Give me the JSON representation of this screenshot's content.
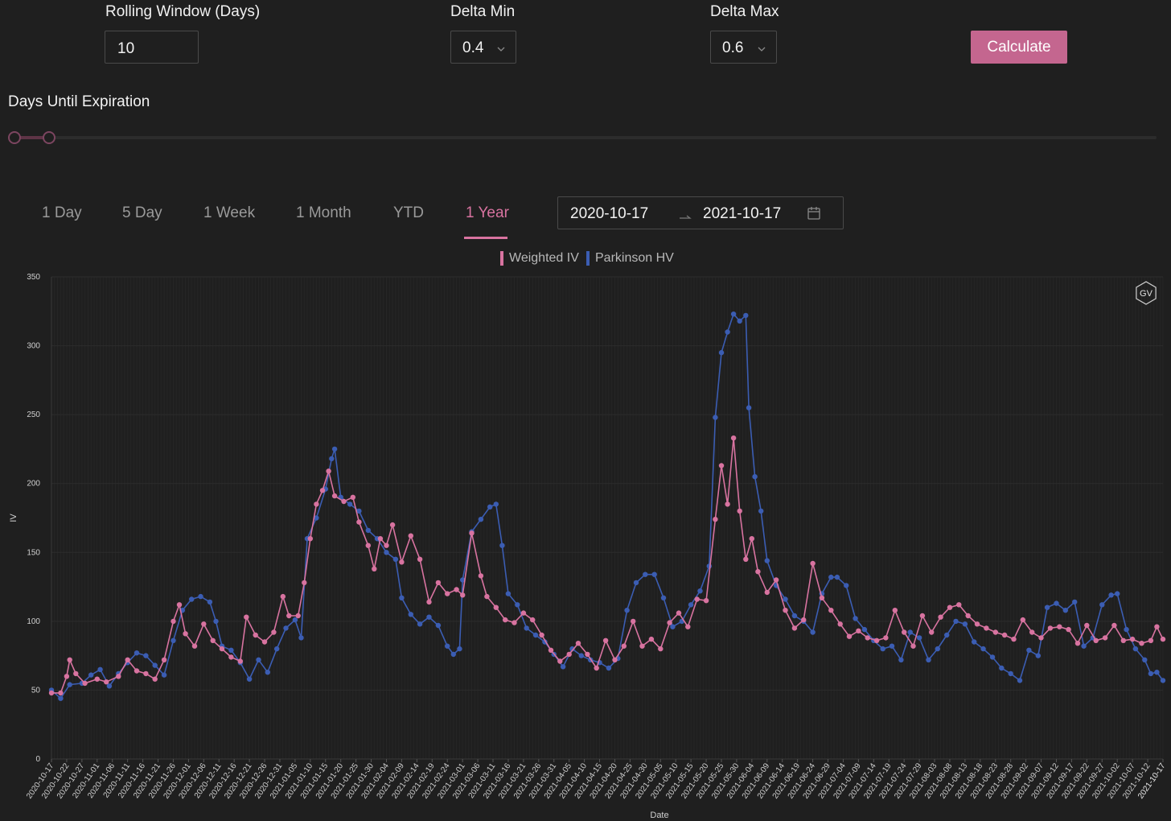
{
  "controls": {
    "rolling_label": "Rolling Window (Days)",
    "rolling_value": "10",
    "delta_min_label": "Delta Min",
    "delta_min_value": "0.4",
    "delta_max_label": "Delta Max",
    "delta_max_value": "0.6",
    "calculate_label": "Calculate",
    "days_label": "Days Until Expiration",
    "slider_range": [
      0,
      0.03
    ]
  },
  "tabs": [
    "1 Day",
    "5 Day",
    "1 Week",
    "1 Month",
    "YTD",
    "1 Year"
  ],
  "active_tab": "1 Year",
  "date_range": {
    "start": "2020-10-17",
    "end": "2021-10-17"
  },
  "colors": {
    "accent": "#c4668f",
    "weighted_iv": "#d873a0",
    "parkinson_hv": "#3b5db3",
    "background": "#1f1f1f"
  },
  "chart_badge": "GV",
  "chart_data": {
    "type": "line",
    "title": "",
    "xlabel": "Date",
    "ylabel": "IV",
    "ylim": [
      0,
      350
    ],
    "yticks": [
      0,
      50,
      100,
      150,
      200,
      250,
      300,
      350
    ],
    "xlim": [
      "2020-10-17",
      "2021-10-17"
    ],
    "xtick_step_days": 5,
    "grid": true,
    "legend_position": "top-center",
    "series": [
      {
        "name": "Weighted IV",
        "color": "#d873a0",
        "points": [
          [
            "2020-10-17",
            48
          ],
          [
            "2020-10-20",
            48
          ],
          [
            "2020-10-22",
            60
          ],
          [
            "2020-10-23",
            72
          ],
          [
            "2020-10-25",
            62
          ],
          [
            "2020-10-28",
            55
          ],
          [
            "2020-11-01",
            58
          ],
          [
            "2020-11-04",
            56
          ],
          [
            "2020-11-08",
            60
          ],
          [
            "2020-11-11",
            72
          ],
          [
            "2020-11-14",
            64
          ],
          [
            "2020-11-17",
            62
          ],
          [
            "2020-11-20",
            58
          ],
          [
            "2020-11-23",
            72
          ],
          [
            "2020-11-26",
            100
          ],
          [
            "2020-11-28",
            112
          ],
          [
            "2020-11-30",
            91
          ],
          [
            "2020-12-03",
            82
          ],
          [
            "2020-12-06",
            98
          ],
          [
            "2020-12-09",
            86
          ],
          [
            "2020-12-12",
            80
          ],
          [
            "2020-12-15",
            74
          ],
          [
            "2020-12-18",
            71
          ],
          [
            "2020-12-20",
            103
          ],
          [
            "2020-12-23",
            90
          ],
          [
            "2020-12-26",
            85
          ],
          [
            "2020-12-29",
            92
          ],
          [
            "2021-01-01",
            118
          ],
          [
            "2021-01-03",
            104
          ],
          [
            "2021-01-06",
            104
          ],
          [
            "2021-01-08",
            128
          ],
          [
            "2021-01-10",
            160
          ],
          [
            "2021-01-12",
            185
          ],
          [
            "2021-01-14",
            195
          ],
          [
            "2021-01-16",
            209
          ],
          [
            "2021-01-18",
            191
          ],
          [
            "2021-01-21",
            187
          ],
          [
            "2021-01-24",
            190
          ],
          [
            "2021-01-26",
            172
          ],
          [
            "2021-01-29",
            155
          ],
          [
            "2021-01-31",
            138
          ],
          [
            "2021-02-02",
            160
          ],
          [
            "2021-02-04",
            155
          ],
          [
            "2021-02-06",
            170
          ],
          [
            "2021-02-09",
            143
          ],
          [
            "2021-02-12",
            162
          ],
          [
            "2021-02-15",
            145
          ],
          [
            "2021-02-18",
            114
          ],
          [
            "2021-02-21",
            128
          ],
          [
            "2021-02-24",
            120
          ],
          [
            "2021-02-27",
            123
          ],
          [
            "2021-03-01",
            119
          ],
          [
            "2021-03-04",
            164
          ],
          [
            "2021-03-07",
            133
          ],
          [
            "2021-03-09",
            118
          ],
          [
            "2021-03-12",
            110
          ],
          [
            "2021-03-15",
            101
          ],
          [
            "2021-03-18",
            99
          ],
          [
            "2021-03-21",
            106
          ],
          [
            "2021-03-24",
            101
          ],
          [
            "2021-03-27",
            90
          ],
          [
            "2021-03-30",
            79
          ],
          [
            "2021-04-02",
            71
          ],
          [
            "2021-04-05",
            76
          ],
          [
            "2021-04-08",
            84
          ],
          [
            "2021-04-11",
            76
          ],
          [
            "2021-04-14",
            66
          ],
          [
            "2021-04-17",
            86
          ],
          [
            "2021-04-20",
            72
          ],
          [
            "2021-04-23",
            82
          ],
          [
            "2021-04-26",
            100
          ],
          [
            "2021-04-29",
            82
          ],
          [
            "2021-05-02",
            87
          ],
          [
            "2021-05-05",
            80
          ],
          [
            "2021-05-08",
            99
          ],
          [
            "2021-05-11",
            106
          ],
          [
            "2021-05-14",
            96
          ],
          [
            "2021-05-17",
            116
          ],
          [
            "2021-05-20",
            115
          ],
          [
            "2021-05-23",
            174
          ],
          [
            "2021-05-25",
            213
          ],
          [
            "2021-05-27",
            185
          ],
          [
            "2021-05-29",
            233
          ],
          [
            "2021-05-31",
            180
          ],
          [
            "2021-06-02",
            145
          ],
          [
            "2021-06-04",
            160
          ],
          [
            "2021-06-06",
            136
          ],
          [
            "2021-06-09",
            121
          ],
          [
            "2021-06-12",
            130
          ],
          [
            "2021-06-15",
            108
          ],
          [
            "2021-06-18",
            95
          ],
          [
            "2021-06-21",
            101
          ],
          [
            "2021-06-24",
            142
          ],
          [
            "2021-06-27",
            117
          ],
          [
            "2021-06-30",
            108
          ],
          [
            "2021-07-03",
            98
          ],
          [
            "2021-07-06",
            89
          ],
          [
            "2021-07-09",
            93
          ],
          [
            "2021-07-12",
            88
          ],
          [
            "2021-07-15",
            86
          ],
          [
            "2021-07-18",
            88
          ],
          [
            "2021-07-21",
            108
          ],
          [
            "2021-07-24",
            92
          ],
          [
            "2021-07-27",
            82
          ],
          [
            "2021-07-30",
            104
          ],
          [
            "2021-08-02",
            92
          ],
          [
            "2021-08-05",
            103
          ],
          [
            "2021-08-08",
            110
          ],
          [
            "2021-08-11",
            112
          ],
          [
            "2021-08-14",
            104
          ],
          [
            "2021-08-17",
            98
          ],
          [
            "2021-08-20",
            95
          ],
          [
            "2021-08-23",
            92
          ],
          [
            "2021-08-26",
            90
          ],
          [
            "2021-08-29",
            87
          ],
          [
            "2021-09-01",
            101
          ],
          [
            "2021-09-04",
            92
          ],
          [
            "2021-09-07",
            88
          ],
          [
            "2021-09-10",
            95
          ],
          [
            "2021-09-13",
            96
          ],
          [
            "2021-09-16",
            94
          ],
          [
            "2021-09-19",
            84
          ],
          [
            "2021-09-22",
            97
          ],
          [
            "2021-09-25",
            86
          ],
          [
            "2021-09-28",
            88
          ],
          [
            "2021-10-01",
            97
          ],
          [
            "2021-10-04",
            86
          ],
          [
            "2021-10-07",
            87
          ],
          [
            "2021-10-10",
            84
          ],
          [
            "2021-10-13",
            86
          ],
          [
            "2021-10-15",
            96
          ],
          [
            "2021-10-17",
            87
          ]
        ]
      },
      {
        "name": "Parkinson HV",
        "color": "#3b5db3",
        "points": [
          [
            "2020-10-17",
            50
          ],
          [
            "2020-10-20",
            44
          ],
          [
            "2020-10-23",
            54
          ],
          [
            "2020-10-27",
            55
          ],
          [
            "2020-10-30",
            61
          ],
          [
            "2020-11-02",
            65
          ],
          [
            "2020-11-05",
            53
          ],
          [
            "2020-11-08",
            62
          ],
          [
            "2020-11-11",
            70
          ],
          [
            "2020-11-14",
            77
          ],
          [
            "2020-11-17",
            75
          ],
          [
            "2020-11-20",
            68
          ],
          [
            "2020-11-23",
            61
          ],
          [
            "2020-11-26",
            86
          ],
          [
            "2020-11-29",
            108
          ],
          [
            "2020-12-02",
            116
          ],
          [
            "2020-12-05",
            118
          ],
          [
            "2020-12-08",
            114
          ],
          [
            "2020-12-10",
            100
          ],
          [
            "2020-12-12",
            82
          ],
          [
            "2020-12-15",
            79
          ],
          [
            "2020-12-18",
            70
          ],
          [
            "2020-12-21",
            58
          ],
          [
            "2020-12-24",
            72
          ],
          [
            "2020-12-27",
            63
          ],
          [
            "2020-12-30",
            80
          ],
          [
            "2021-01-02",
            95
          ],
          [
            "2021-01-05",
            101
          ],
          [
            "2021-01-07",
            88
          ],
          [
            "2021-01-09",
            160
          ],
          [
            "2021-01-12",
            175
          ],
          [
            "2021-01-15",
            196
          ],
          [
            "2021-01-17",
            218
          ],
          [
            "2021-01-18",
            225
          ],
          [
            "2021-01-20",
            190
          ],
          [
            "2021-01-23",
            185
          ],
          [
            "2021-01-26",
            180
          ],
          [
            "2021-01-29",
            166
          ],
          [
            "2021-02-01",
            160
          ],
          [
            "2021-02-04",
            150
          ],
          [
            "2021-02-07",
            145
          ],
          [
            "2021-02-09",
            117
          ],
          [
            "2021-02-12",
            105
          ],
          [
            "2021-02-15",
            98
          ],
          [
            "2021-02-18",
            103
          ],
          [
            "2021-02-21",
            97
          ],
          [
            "2021-02-24",
            82
          ],
          [
            "2021-02-26",
            76
          ],
          [
            "2021-02-28",
            80
          ],
          [
            "2021-03-01",
            130
          ],
          [
            "2021-03-04",
            165
          ],
          [
            "2021-03-07",
            174
          ],
          [
            "2021-03-10",
            183
          ],
          [
            "2021-03-12",
            185
          ],
          [
            "2021-03-14",
            155
          ],
          [
            "2021-03-16",
            120
          ],
          [
            "2021-03-19",
            112
          ],
          [
            "2021-03-22",
            95
          ],
          [
            "2021-03-25",
            90
          ],
          [
            "2021-03-28",
            85
          ],
          [
            "2021-03-31",
            76
          ],
          [
            "2021-04-03",
            67
          ],
          [
            "2021-04-06",
            80
          ],
          [
            "2021-04-09",
            75
          ],
          [
            "2021-04-12",
            72
          ],
          [
            "2021-04-15",
            70
          ],
          [
            "2021-04-18",
            66
          ],
          [
            "2021-04-21",
            73
          ],
          [
            "2021-04-24",
            108
          ],
          [
            "2021-04-27",
            128
          ],
          [
            "2021-04-30",
            134
          ],
          [
            "2021-05-03",
            134
          ],
          [
            "2021-05-06",
            117
          ],
          [
            "2021-05-09",
            96
          ],
          [
            "2021-05-12",
            100
          ],
          [
            "2021-05-15",
            112
          ],
          [
            "2021-05-18",
            122
          ],
          [
            "2021-05-21",
            140
          ],
          [
            "2021-05-23",
            248
          ],
          [
            "2021-05-25",
            295
          ],
          [
            "2021-05-27",
            310
          ],
          [
            "2021-05-29",
            323
          ],
          [
            "2021-05-31",
            318
          ],
          [
            "2021-06-02",
            322
          ],
          [
            "2021-06-03",
            255
          ],
          [
            "2021-06-05",
            205
          ],
          [
            "2021-06-07",
            180
          ],
          [
            "2021-06-09",
            144
          ],
          [
            "2021-06-12",
            126
          ],
          [
            "2021-06-15",
            116
          ],
          [
            "2021-06-18",
            104
          ],
          [
            "2021-06-21",
            100
          ],
          [
            "2021-06-24",
            92
          ],
          [
            "2021-06-27",
            120
          ],
          [
            "2021-06-30",
            132
          ],
          [
            "2021-07-02",
            132
          ],
          [
            "2021-07-05",
            126
          ],
          [
            "2021-07-08",
            102
          ],
          [
            "2021-07-11",
            94
          ],
          [
            "2021-07-14",
            86
          ],
          [
            "2021-07-17",
            80
          ],
          [
            "2021-07-20",
            82
          ],
          [
            "2021-07-23",
            72
          ],
          [
            "2021-07-26",
            92
          ],
          [
            "2021-07-29",
            88
          ],
          [
            "2021-08-01",
            72
          ],
          [
            "2021-08-04",
            80
          ],
          [
            "2021-08-07",
            90
          ],
          [
            "2021-08-10",
            100
          ],
          [
            "2021-08-13",
            98
          ],
          [
            "2021-08-16",
            85
          ],
          [
            "2021-08-19",
            80
          ],
          [
            "2021-08-22",
            74
          ],
          [
            "2021-08-25",
            66
          ],
          [
            "2021-08-28",
            62
          ],
          [
            "2021-08-31",
            57
          ],
          [
            "2021-09-03",
            79
          ],
          [
            "2021-09-06",
            75
          ],
          [
            "2021-09-09",
            110
          ],
          [
            "2021-09-12",
            113
          ],
          [
            "2021-09-15",
            108
          ],
          [
            "2021-09-18",
            114
          ],
          [
            "2021-09-21",
            82
          ],
          [
            "2021-09-24",
            88
          ],
          [
            "2021-09-27",
            112
          ],
          [
            "2021-09-30",
            119
          ],
          [
            "2021-10-02",
            120
          ],
          [
            "2021-10-05",
            94
          ],
          [
            "2021-10-08",
            80
          ],
          [
            "2021-10-11",
            72
          ],
          [
            "2021-10-13",
            62
          ],
          [
            "2021-10-15",
            63
          ],
          [
            "2021-10-17",
            57
          ]
        ]
      }
    ]
  }
}
